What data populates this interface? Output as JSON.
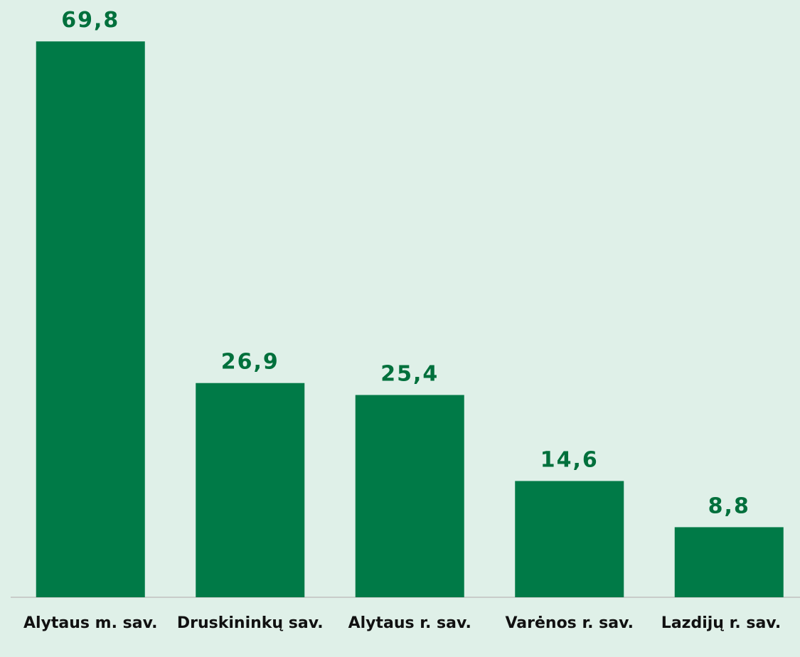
{
  "chart_data": {
    "type": "bar",
    "categories": [
      "Alytaus m. sav.",
      "Druskininkų sav.",
      "Alytaus r. sav.",
      "Varėnos r. sav.",
      "Lazdijų r. sav."
    ],
    "values": [
      69.8,
      26.9,
      25.4,
      14.6,
      8.8
    ],
    "value_labels": [
      "69,8",
      "26,9",
      "25,4",
      "14,6",
      "8,8"
    ],
    "color": "#007a47",
    "ylim": [
      0,
      75
    ]
  }
}
